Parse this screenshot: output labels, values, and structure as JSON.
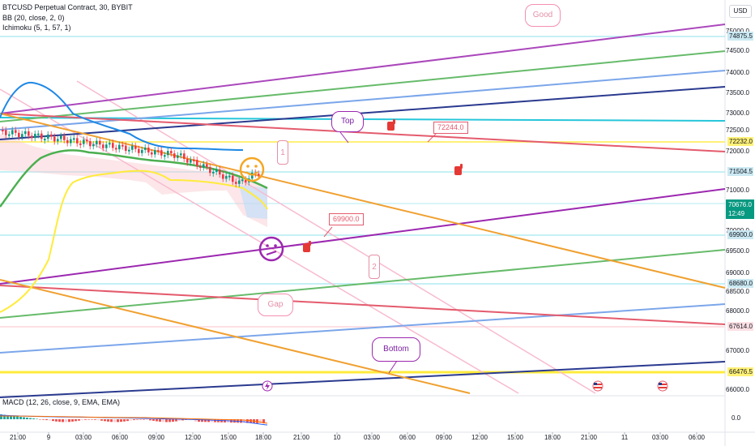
{
  "header": {
    "symbol_line": "BTCUSD Perpetual Contract, 30, BYBIT",
    "bb_line": "BB (20, close, 2, 0)",
    "ichimoku_line": "Ichimoku (5, 1, 57, 1)"
  },
  "currency": "USD",
  "price_axis": {
    "ticks": [
      "75000.0",
      "74500.0",
      "74000.0",
      "73500.0",
      "73000.0",
      "72500.0",
      "72000.0",
      "71000.0",
      "70000.0",
      "69500.0",
      "69000.0",
      "68500.0",
      "68000.0",
      "67000.0",
      "66000.0"
    ],
    "highlight_tags": [
      {
        "value": "74875.5",
        "bg": "#cbe9f2",
        "color": "#131722"
      },
      {
        "value": "72232.0",
        "bg": "#fff176",
        "color": "#131722"
      },
      {
        "value": "71504.5",
        "bg": "#cbe9f2",
        "color": "#131722"
      },
      {
        "value": "69900.0",
        "bg": "#cbe9f2",
        "color": "#131722"
      },
      {
        "value": "68680.0",
        "bg": "#cbe9f2",
        "color": "#131722"
      },
      {
        "value": "67614.0",
        "bg": "#fde0e4",
        "color": "#131722"
      },
      {
        "value": "66476.5",
        "bg": "#fff176",
        "color": "#131722"
      }
    ],
    "current_price": "70676.0",
    "countdown": "12:49"
  },
  "time_axis": [
    "21:00",
    "9",
    "03:00",
    "06:00",
    "09:00",
    "12:00",
    "15:00",
    "18:00",
    "21:00",
    "10",
    "03:00",
    "06:00",
    "09:00",
    "12:00",
    "15:00",
    "18:00",
    "21:00",
    "11",
    "03:00",
    "06:00"
  ],
  "annotations": {
    "good": "Good",
    "top": "Top",
    "bottom": "Bottom",
    "gap": "Gap",
    "label_72244": "72244.0",
    "label_69900": "69900.0",
    "num_1": "1",
    "num_2": "2"
  },
  "macd": {
    "label": "MACD (12, 26, close, 9, EMA, EMA)",
    "value": "0.0"
  },
  "colors": {
    "purple": "#9c27b0",
    "green": "#4caf50",
    "light_blue": "#7ba6ea",
    "navy": "#2a3a8f",
    "red": "#e45b6d",
    "orange": "#f0a030",
    "teal": "#26c6da",
    "yellow": "#ffeb3b",
    "bb_blue": "#1e88e5",
    "bull": "#089981",
    "bear": "#f23645"
  },
  "icons": [
    "hand-pointer-icon",
    "smile-emoji-icon",
    "confused-emoji-icon",
    "us-flag-icon",
    "lightning-icon"
  ]
}
